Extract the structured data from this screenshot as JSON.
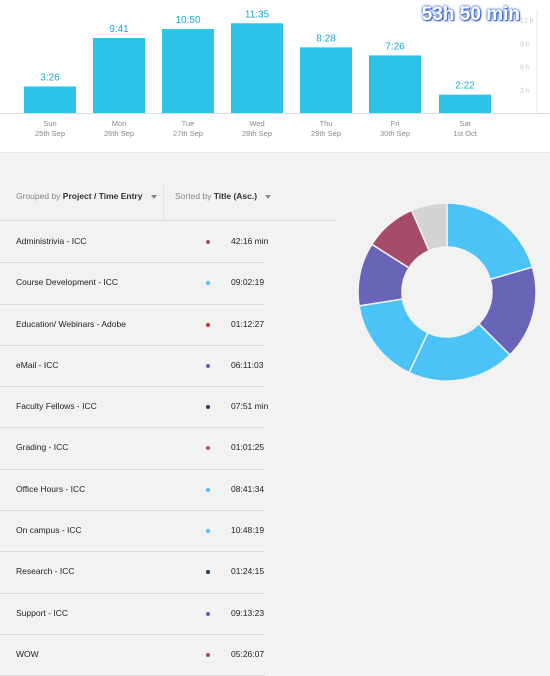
{
  "weekly_chart": {
    "total": "53h 50 min",
    "y_ticks": [
      "12 h",
      "9 h",
      "6 h",
      "3 h"
    ],
    "days": [
      {
        "day": "Sun",
        "date": "25th Sep",
        "label": "3:26",
        "hours": 3.43
      },
      {
        "day": "Mon",
        "date": "26th Sep",
        "label": "9:41",
        "hours": 9.68
      },
      {
        "day": "Tue",
        "date": "27th Sep",
        "label": "10:50",
        "hours": 10.83
      },
      {
        "day": "Wed",
        "date": "28th Sep",
        "label": "11:35",
        "hours": 11.58
      },
      {
        "day": "Thu",
        "date": "29th Sep",
        "label": "8:28",
        "hours": 8.47
      },
      {
        "day": "Fri",
        "date": "30th Sep",
        "label": "7:26",
        "hours": 7.43
      },
      {
        "day": "Sat",
        "date": "1st Oct",
        "label": "2:22",
        "hours": 2.37
      }
    ],
    "bar_color": "#2bc4e8"
  },
  "controls": {
    "group_prefix": "Grouped by",
    "group_value": "Project / Time Entry",
    "sort_prefix": "Sorted by",
    "sort_value": "Title (Asc.)"
  },
  "entries": [
    {
      "name": "Administrivia - ICC",
      "duration": "42:16 min",
      "color": "#a74b6a"
    },
    {
      "name": "Course Development - ICC",
      "duration": "09:02:19",
      "color": "#4bc3f7"
    },
    {
      "name": "Education/ Webinars - Adobe",
      "duration": "01:12:27",
      "color": "#c0392b"
    },
    {
      "name": "eMail - ICC",
      "duration": "06:11:03",
      "color": "#6a64b8"
    },
    {
      "name": "Faculty Fellows - ICC",
      "duration": "07:51 min",
      "color": "#1f3b5a"
    },
    {
      "name": "Grading - ICC",
      "duration": "01:01:25",
      "color": "#a74b6a"
    },
    {
      "name": "Office Hours - ICC",
      "duration": "08:41:34",
      "color": "#4bc3f7"
    },
    {
      "name": "On campus - ICC",
      "duration": "10:48:19",
      "color": "#4bc3f7"
    },
    {
      "name": "Research - ICC",
      "duration": "01:24:15",
      "color": "#1f3b5a"
    },
    {
      "name": "Support - ICC",
      "duration": "09:13:23",
      "color": "#6a64b8"
    },
    {
      "name": "WOW",
      "duration": "05:26:07",
      "color": "#a74b6a"
    }
  ],
  "donut": {
    "segments": [
      {
        "value": 20.5,
        "color": "#4bc3f7"
      },
      {
        "value": 17.0,
        "color": "#6a64b8"
      },
      {
        "value": 19.5,
        "color": "#4bc3f7"
      },
      {
        "value": 15.5,
        "color": "#4bc3f7"
      },
      {
        "value": 11.5,
        "color": "#6a64b8"
      },
      {
        "value": 9.5,
        "color": "#a74b6a"
      },
      {
        "value": 6.5,
        "color": "#d3d3d3"
      }
    ]
  }
}
